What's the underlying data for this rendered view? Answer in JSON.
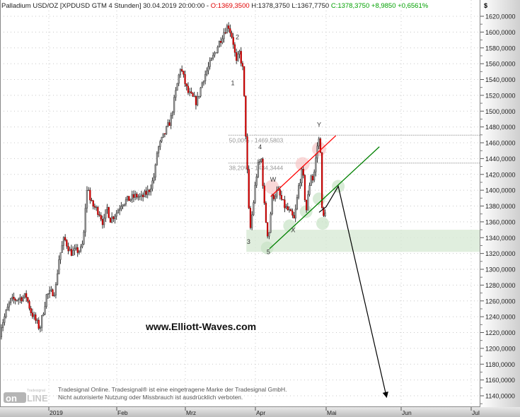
{
  "header": {
    "instrument": "Palladium USD/OZ [XPDUSD GTM  4 Stunden] 30.04.2019 20:00:00 -",
    "open": "O:1369,3500",
    "high": "H:1378,3750",
    "low": "L:1367,7750",
    "close": "C:1378,3750",
    "change": "+8,9850",
    "change_pct": "+0,6561%"
  },
  "watermark": "www.Elliott-Waves.com",
  "copyright": {
    "line1": "Tradesignal Online. Tradesignal® ist eine eingetragene Marke der Tradesignal GmbH.",
    "line2": "Nicht autorisierte Nutzung oder Missbrauch ist ausdrücklich verboten."
  },
  "logo_text": "Tradesignal online",
  "colors": {
    "up_candle": "#ffffff",
    "down_candle": "#e00000",
    "wick": "#000000",
    "resistance_line": "#ff0000",
    "support_line": "#008000",
    "zone": "#d8ead6",
    "fib_line": "#aaaaaa",
    "arrow": "#000000"
  },
  "chart_data": {
    "type": "candlestick",
    "timeframe": "4 Stunden",
    "y_unit": "$",
    "ylim": [
      1130,
      1630
    ],
    "yticks": [
      "1620,0000",
      "1600,0000",
      "1580,0000",
      "1560,0000",
      "1540,0000",
      "1520,0000",
      "1500,0000",
      "1480,0000",
      "1460,0000",
      "1440,0000",
      "1420,0000",
      "1400,0000",
      "1380,0000",
      "1360,0000",
      "1340,0000",
      "1320,0000",
      "1300,0000",
      "1280,0000",
      "1260,0000",
      "1240,0000",
      "1220,0000",
      "1200,0000",
      "1180,0000",
      "1160,0000",
      "1140,0000"
    ],
    "xticks": [
      {
        "label": "2019",
        "date": "2019-01-01"
      },
      {
        "label": "Feb",
        "date": "2019-02-01"
      },
      {
        "label": "Mrz",
        "date": "2019-03-01"
      },
      {
        "label": "Apr",
        "date": "2019-04-01"
      },
      {
        "label": "Mai",
        "date": "2019-05-01"
      },
      {
        "label": "Jun",
        "date": "2019-06-01"
      },
      {
        "label": "Jul",
        "date": "2019-07-01"
      }
    ],
    "grid": true,
    "close_path": [
      [
        "2018-12-10 00:00",
        1215
      ],
      [
        "2018-12-11 00:00",
        1229
      ],
      [
        "2018-12-15 00:00",
        1260
      ],
      [
        "2018-12-22 00:00",
        1266
      ],
      [
        "2018-12-24 00:00",
        1247
      ],
      [
        "2018-12-28 00:00",
        1225
      ],
      [
        "2018-12-31 00:00",
        1267
      ],
      [
        "2019-01-04 00:00",
        1273
      ],
      [
        "2019-01-05 12:00",
        1312
      ],
      [
        "2019-01-08 00:00",
        1339
      ],
      [
        "2019-01-11 00:00",
        1321
      ],
      [
        "2019-01-16 00:00",
        1325
      ],
      [
        "2019-01-17 00:00",
        1345
      ],
      [
        "2019-01-18 00:00",
        1393
      ],
      [
        "2019-01-19 00:00",
        1406
      ],
      [
        "2019-01-20 00:00",
        1384
      ],
      [
        "2019-01-24 00:00",
        1372
      ],
      [
        "2019-01-26 00:00",
        1357
      ],
      [
        "2019-01-27 12:00",
        1379
      ],
      [
        "2019-01-29 00:00",
        1363
      ],
      [
        "2019-02-01 00:00",
        1372
      ],
      [
        "2019-02-03 00:00",
        1384
      ],
      [
        "2019-02-09 00:00",
        1393
      ],
      [
        "2019-02-11 00:00",
        1390
      ],
      [
        "2019-02-14 00:00",
        1399
      ],
      [
        "2019-02-16 00:00",
        1414
      ],
      [
        "2019-02-17 00:00",
        1432
      ],
      [
        "2019-02-17 12:00",
        1450
      ],
      [
        "2019-02-23 00:00",
        1489
      ],
      [
        "2019-02-27 00:00",
        1556
      ],
      [
        "2019-03-02 00:00",
        1524
      ],
      [
        "2019-03-06 00:00",
        1511
      ],
      [
        "2019-03-09 00:00",
        1542
      ],
      [
        "2019-03-12 00:00",
        1560
      ],
      [
        "2019-03-16 00:00",
        1587
      ],
      [
        "2019-03-18 00:00",
        1600
      ],
      [
        "2019-03-20 00:00",
        1609
      ],
      [
        "2019-03-22 00:00",
        1591
      ],
      [
        "2019-03-23 12:00",
        1560
      ],
      [
        "2019-03-25 00:00",
        1574
      ],
      [
        "2019-03-26 12:00",
        1551
      ],
      [
        "2019-03-28 00:00",
        1453
      ],
      [
        "2019-03-29 12:00",
        1345
      ],
      [
        "2019-03-31 00:00",
        1381
      ],
      [
        "2019-04-01 00:00",
        1408
      ],
      [
        "2019-04-02 00:00",
        1430
      ],
      [
        "2019-04-03 12:00",
        1439
      ],
      [
        "2019-04-05 00:00",
        1372
      ],
      [
        "2019-04-06 12:00",
        1337
      ],
      [
        "2019-04-08 00:00",
        1390
      ],
      [
        "2019-04-10 12:00",
        1399
      ],
      [
        "2019-04-13 00:00",
        1381
      ],
      [
        "2019-04-15 12:00",
        1372
      ],
      [
        "2019-04-17 12:00",
        1362
      ],
      [
        "2019-04-19 12:00",
        1408
      ],
      [
        "2019-04-21 00:00",
        1426
      ],
      [
        "2019-04-22 12:00",
        1372
      ],
      [
        "2019-04-24 12:00",
        1421
      ],
      [
        "2019-04-25 12:00",
        1412
      ],
      [
        "2019-04-27 12:00",
        1462
      ],
      [
        "2019-04-28 12:00",
        1466
      ],
      [
        "2019-04-29 00:00",
        1381
      ],
      [
        "2019-04-29 16:00",
        1363
      ],
      [
        "2019-04-30 20:00",
        1378.375
      ]
    ],
    "fibonacci": [
      {
        "label": "50,00% - 1469,5803",
        "price": 1469.5803,
        "from": "2019-03-20 00:00"
      },
      {
        "label": "38,20% - 1434,3444",
        "price": 1434.3444,
        "from": "2019-03-20 00:00"
      }
    ],
    "support_zone": {
      "low": 1322,
      "high": 1350,
      "from": "2019-03-28 00:00"
    },
    "wave_labels": [
      {
        "text": "1",
        "date": "2019-03-22 00:00",
        "price": 1533
      },
      {
        "text": "2",
        "date": "2019-03-24 00:00",
        "price": 1591
      },
      {
        "text": "3",
        "date": "2019-03-29 00:00",
        "price": 1332
      },
      {
        "text": "4",
        "date": "2019-04-03 00:00",
        "price": 1452
      },
      {
        "text": "5",
        "date": "2019-04-06 12:00",
        "price": 1319
      },
      {
        "text": "W",
        "date": "2019-04-08 12:00",
        "price": 1411
      },
      {
        "text": "X",
        "date": "2019-04-17 00:00",
        "price": 1347
      },
      {
        "text": "Y",
        "date": "2019-04-28 00:00",
        "price": 1480
      }
    ],
    "trend_lines": [
      {
        "name": "resistance",
        "color": "#ff0000",
        "from": [
          "2019-04-07 12:00",
          1392
        ],
        "to": [
          "2019-05-05 00:00",
          1469
        ]
      },
      {
        "name": "support",
        "color": "#008000",
        "from": [
          "2019-04-07 00:00",
          1326
        ],
        "to": [
          "2019-05-23 00:00",
          1455
        ]
      }
    ],
    "forecast_arrow": [
      [
        "2019-04-28 00:00",
        1372
      ],
      [
        "2019-05-01 00:00",
        1379
      ],
      [
        "2019-05-06 00:00",
        1405
      ],
      [
        "2019-05-26 00:00",
        1138
      ]
    ],
    "highlight_circles": {
      "red": [
        [
          "2019-04-08 00:00",
          1404
        ],
        [
          "2019-04-21 00:00",
          1433
        ],
        [
          "2019-04-28 00:00",
          1452
        ]
      ],
      "green": [
        [
          "2019-04-06 00:00",
          1327
        ],
        [
          "2019-04-15 12:00",
          1355
        ],
        [
          "2019-04-22 12:00",
          1373
        ],
        [
          "2019-04-28 00:00",
          1389
        ],
        [
          "2019-04-29 12:00",
          1358
        ],
        [
          "2019-05-06 00:00",
          1405
        ]
      ]
    }
  }
}
